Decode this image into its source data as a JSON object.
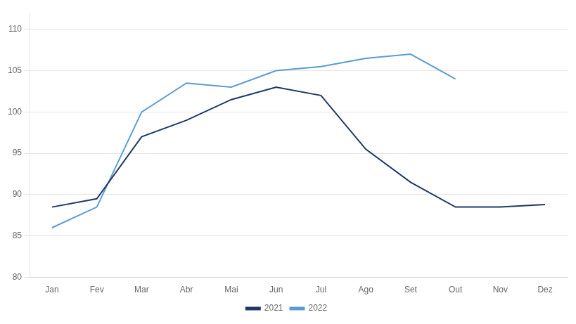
{
  "chart_data": {
    "type": "line",
    "categories": [
      "Jan",
      "Fev",
      "Mar",
      "Abr",
      "Mai",
      "Jun",
      "Jul",
      "Ago",
      "Set",
      "Out",
      "Nov",
      "Dez"
    ],
    "series": [
      {
        "name": "2021",
        "color": "#1F3864",
        "values": [
          88.5,
          89.5,
          97.0,
          99.0,
          101.5,
          103.0,
          102.0,
          95.5,
          91.5,
          88.5,
          88.5,
          88.8
        ]
      },
      {
        "name": "2022",
        "color": "#5B9BD5",
        "values": [
          86.0,
          88.5,
          100.0,
          103.5,
          103.0,
          105.0,
          105.5,
          106.5,
          107.0,
          104.0,
          null,
          null
        ]
      }
    ],
    "ylim": [
      80,
      112
    ],
    "yticks": [
      80,
      85,
      90,
      95,
      100,
      105,
      110
    ],
    "grid": "y",
    "legend": "bottom"
  }
}
